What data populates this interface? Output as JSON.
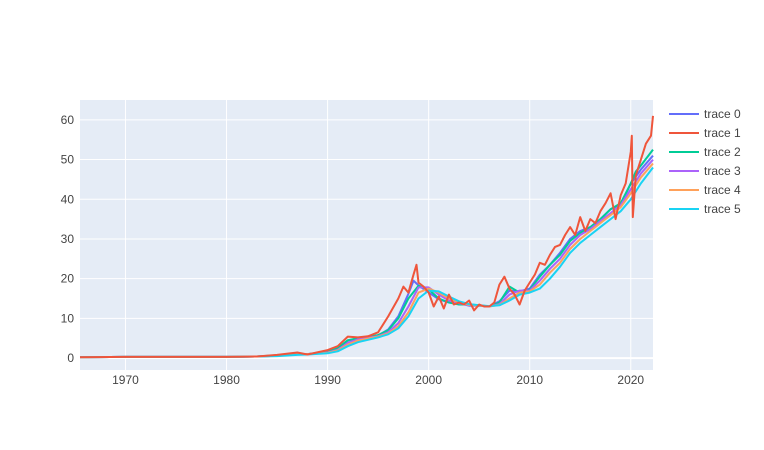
{
  "chart_data": {
    "type": "line",
    "title": "",
    "xlabel": "",
    "ylabel": "",
    "xlim": [
      1965.5,
      2022.2
    ],
    "ylim": [
      -3,
      65
    ],
    "x_ticks": [
      1970,
      1980,
      1990,
      2000,
      2010,
      2020
    ],
    "x_tick_labels": [
      "1970",
      "1980",
      "1990",
      "2000",
      "2010",
      "2020"
    ],
    "y_ticks": [
      0,
      10,
      20,
      30,
      40,
      50,
      60
    ],
    "y_tick_labels": [
      "0",
      "10",
      "20",
      "30",
      "40",
      "50",
      "60"
    ],
    "grid": true,
    "legend": "right",
    "series": [
      {
        "name": "trace 0",
        "color": "#636efa",
        "x": [
          1965.5,
          1970,
          1975,
          1980,
          1983,
          1985,
          1987,
          1988,
          1990,
          1991,
          1992,
          1993,
          1994,
          1995,
          1996,
          1997,
          1998,
          1998.5,
          1999,
          2000,
          2001,
          2002,
          2003,
          2004,
          2005,
          2006,
          2007,
          2008,
          2009,
          2010,
          2011,
          2012,
          2013,
          2014,
          2015,
          2016,
          2017,
          2018,
          2019,
          2020,
          2021,
          2022.2
        ],
        "y": [
          0.2,
          0.3,
          0.3,
          0.3,
          0.4,
          0.6,
          1.0,
          1.0,
          1.5,
          2.3,
          4.4,
          5.0,
          5.3,
          5.7,
          7.2,
          10.5,
          16.2,
          19.5,
          18.3,
          16.5,
          14.8,
          14.0,
          13.8,
          13.2,
          13.2,
          13.0,
          14.3,
          17.0,
          16.8,
          17.5,
          21.0,
          23.5,
          26.5,
          30.0,
          32.0,
          33.0,
          35.0,
          37.5,
          38.5,
          44.0,
          47.5,
          51.0
        ]
      },
      {
        "name": "trace 1",
        "color": "#ef553b",
        "x": [
          1965.5,
          1970,
          1975,
          1980,
          1983,
          1985,
          1987,
          1988,
          1990,
          1991,
          1992,
          1993,
          1994,
          1995,
          1995.5,
          1996,
          1997,
          1997.5,
          1998,
          1998.5,
          1998.8,
          1999,
          1999.5,
          2000,
          2000.5,
          2001,
          2001.5,
          2002,
          2002.5,
          2003,
          2003.5,
          2004,
          2004.5,
          2005,
          2005.5,
          2006,
          2006.5,
          2007,
          2007.5,
          2008,
          2008.5,
          2009,
          2009.5,
          2010,
          2010.5,
          2011,
          2011.5,
          2012,
          2012.5,
          2013,
          2013.5,
          2014,
          2014.5,
          2015,
          2015.5,
          2016,
          2016.5,
          2017,
          2017.5,
          2018,
          2018.5,
          2019,
          2019.5,
          2020,
          2020.1,
          2020.2,
          2020.5,
          2021,
          2021.5,
          2022,
          2022.2
        ],
        "y": [
          0.2,
          0.3,
          0.3,
          0.3,
          0.4,
          0.8,
          1.4,
          0.9,
          2.0,
          3.0,
          5.4,
          5.2,
          5.5,
          6.5,
          8.5,
          10.5,
          15.0,
          18.0,
          16.5,
          21.0,
          23.5,
          19.0,
          18.0,
          16.5,
          13.0,
          15.5,
          12.5,
          16.0,
          13.5,
          14.0,
          13.5,
          14.5,
          12.0,
          13.5,
          13.0,
          13.0,
          14.0,
          18.5,
          20.5,
          17.5,
          16.0,
          13.5,
          17.0,
          19.0,
          21.0,
          24.0,
          23.5,
          26.0,
          28.0,
          28.5,
          31.0,
          33.0,
          31.0,
          35.5,
          32.0,
          35.0,
          34.0,
          37.0,
          39.0,
          41.5,
          35.0,
          41.0,
          44.0,
          52.0,
          56.0,
          35.5,
          46.0,
          50.0,
          54.0,
          56.0,
          61.0
        ]
      },
      {
        "name": "trace 2",
        "color": "#00cc96",
        "x": [
          1965.5,
          1970,
          1975,
          1980,
          1983,
          1985,
          1987,
          1988,
          1990,
          1991,
          1992,
          1993,
          1994,
          1995,
          1996,
          1997,
          1998,
          1999,
          2000,
          2001,
          2002,
          2003,
          2004,
          2005,
          2006,
          2007,
          2008,
          2009,
          2010,
          2011,
          2012,
          2013,
          2014,
          2015,
          2016,
          2017,
          2018,
          2019,
          2020,
          2020.5,
          2021,
          2022.2
        ],
        "y": [
          0.2,
          0.3,
          0.3,
          0.3,
          0.4,
          0.7,
          1.0,
          1.0,
          1.6,
          2.5,
          4.5,
          5.0,
          5.3,
          5.8,
          7.0,
          10.0,
          15.0,
          18.2,
          17.3,
          15.0,
          14.0,
          13.5,
          13.5,
          13.3,
          13.0,
          14.0,
          18.0,
          16.5,
          17.2,
          20.5,
          23.5,
          26.0,
          29.5,
          31.5,
          33.0,
          35.0,
          37.5,
          39.0,
          44.0,
          47.0,
          48.5,
          52.5
        ]
      },
      {
        "name": "trace 3",
        "color": "#ab63fa",
        "x": [
          1965.5,
          1970,
          1975,
          1980,
          1983,
          1985,
          1987,
          1988,
          1990,
          1991,
          1992,
          1993,
          1994,
          1995,
          1996,
          1997,
          1998,
          1999,
          2000,
          2001,
          2002,
          2003,
          2004,
          2005,
          2006,
          2007,
          2008,
          2009,
          2010,
          2011,
          2012,
          2013,
          2014,
          2015,
          2016,
          2017,
          2018,
          2019,
          2020,
          2021,
          2022.2
        ],
        "y": [
          0.2,
          0.3,
          0.3,
          0.3,
          0.4,
          0.6,
          0.9,
          1.0,
          1.4,
          2.1,
          3.8,
          4.7,
          5.1,
          5.5,
          6.5,
          8.8,
          13.0,
          17.8,
          17.8,
          16.0,
          14.5,
          13.8,
          13.3,
          13.2,
          13.0,
          13.6,
          16.0,
          17.0,
          17.0,
          19.5,
          22.5,
          25.0,
          28.5,
          31.0,
          32.5,
          34.5,
          36.5,
          38.5,
          42.5,
          46.5,
          50.0
        ]
      },
      {
        "name": "trace 4",
        "color": "#ffa15a",
        "x": [
          1965.5,
          1970,
          1975,
          1980,
          1983,
          1985,
          1987,
          1988,
          1990,
          1991,
          1992,
          1993,
          1994,
          1995,
          1996,
          1997,
          1998,
          1999,
          2000,
          2001,
          2002,
          2003,
          2004,
          2005,
          2006,
          2007,
          2008,
          2009,
          2010,
          2011,
          2012,
          2013,
          2014,
          2015,
          2016,
          2017,
          2018,
          2019,
          2020,
          2021,
          2022.2
        ],
        "y": [
          0.2,
          0.3,
          0.3,
          0.3,
          0.4,
          0.6,
          0.9,
          1.0,
          1.3,
          1.9,
          3.4,
          4.4,
          4.9,
          5.4,
          6.2,
          8.0,
          11.5,
          16.5,
          17.5,
          16.5,
          15.0,
          14.0,
          13.4,
          13.2,
          13.0,
          13.4,
          15.0,
          16.5,
          16.8,
          18.5,
          21.5,
          24.0,
          27.5,
          30.0,
          32.0,
          34.0,
          36.0,
          38.0,
          41.5,
          45.5,
          49.0
        ]
      },
      {
        "name": "trace 5",
        "color": "#19d3f3",
        "x": [
          1965.5,
          1970,
          1975,
          1980,
          1983,
          1985,
          1987,
          1988,
          1990,
          1991,
          1992,
          1993,
          1994,
          1995,
          1996,
          1997,
          1998,
          1999,
          2000,
          2001,
          2002,
          2003,
          2004,
          2005,
          2006,
          2007,
          2008,
          2009,
          2010,
          2011,
          2012,
          2013,
          2014,
          2015,
          2016,
          2017,
          2018,
          2019,
          2020,
          2021,
          2022.2
        ],
        "y": [
          0.2,
          0.3,
          0.3,
          0.3,
          0.4,
          0.5,
          0.8,
          0.9,
          1.2,
          1.7,
          3.0,
          4.0,
          4.6,
          5.2,
          6.0,
          7.5,
          10.5,
          15.0,
          17.0,
          16.8,
          15.5,
          14.3,
          13.6,
          13.3,
          13.1,
          13.3,
          14.5,
          16.0,
          16.5,
          17.5,
          20.0,
          23.0,
          26.5,
          29.0,
          31.0,
          33.0,
          35.0,
          37.0,
          40.0,
          44.0,
          48.0
        ]
      }
    ]
  }
}
